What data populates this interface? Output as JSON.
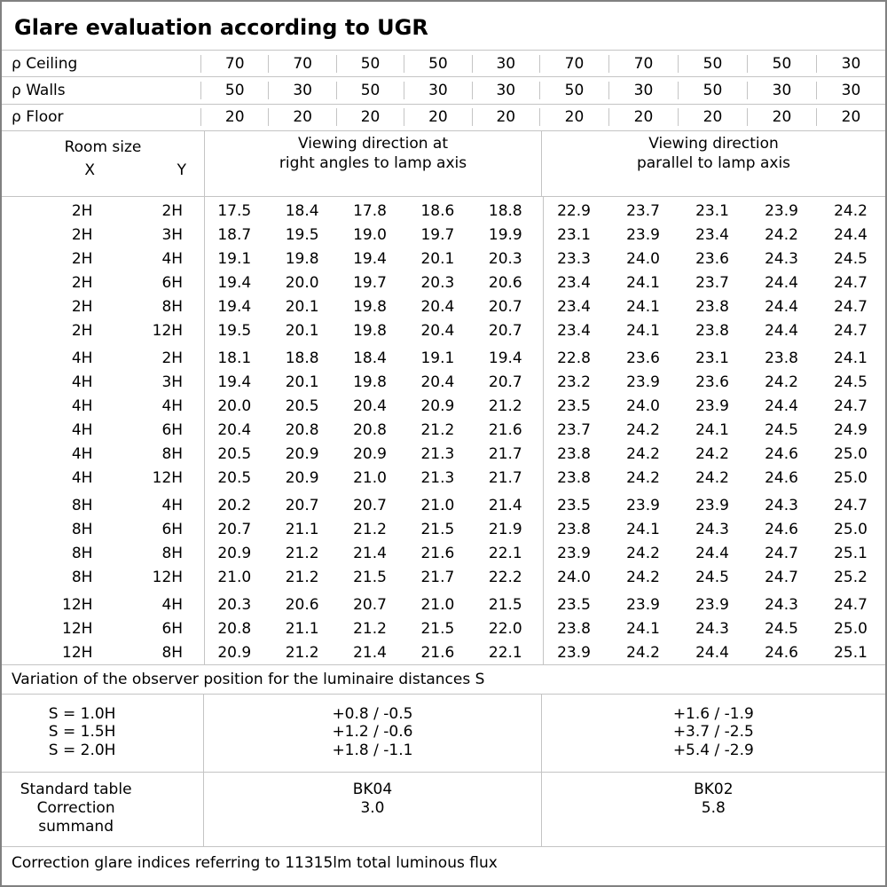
{
  "title": "Glare evaluation according to UGR",
  "colors": {
    "outer_border": "#808080",
    "grid_line": "#c4c4c4",
    "text": "#000000",
    "background": "#ffffff"
  },
  "reflectance_rows": [
    {
      "label": "ρ Ceiling",
      "values": [
        "70",
        "70",
        "50",
        "50",
        "30",
        "70",
        "70",
        "50",
        "50",
        "30"
      ]
    },
    {
      "label": "ρ Walls",
      "values": [
        "50",
        "30",
        "50",
        "30",
        "30",
        "50",
        "30",
        "50",
        "30",
        "30"
      ]
    },
    {
      "label": "ρ Floor",
      "values": [
        "20",
        "20",
        "20",
        "20",
        "20",
        "20",
        "20",
        "20",
        "20",
        "20"
      ]
    }
  ],
  "header": {
    "room_size": "Room size",
    "x": "X",
    "y": "Y",
    "group_right_angles": [
      "Viewing direction at",
      "right angles to lamp axis"
    ],
    "group_parallel": [
      "Viewing direction",
      "parallel to lamp axis"
    ]
  },
  "ugr_blocks": [
    {
      "rows": [
        {
          "x": "2H",
          "y": "2H",
          "values": [
            "17.5",
            "18.4",
            "17.8",
            "18.6",
            "18.8",
            "22.9",
            "23.7",
            "23.1",
            "23.9",
            "24.2"
          ]
        },
        {
          "x": "2H",
          "y": "3H",
          "values": [
            "18.7",
            "19.5",
            "19.0",
            "19.7",
            "19.9",
            "23.1",
            "23.9",
            "23.4",
            "24.2",
            "24.4"
          ]
        },
        {
          "x": "2H",
          "y": "4H",
          "values": [
            "19.1",
            "19.8",
            "19.4",
            "20.1",
            "20.3",
            "23.3",
            "24.0",
            "23.6",
            "24.3",
            "24.5"
          ]
        },
        {
          "x": "2H",
          "y": "6H",
          "values": [
            "19.4",
            "20.0",
            "19.7",
            "20.3",
            "20.6",
            "23.4",
            "24.1",
            "23.7",
            "24.4",
            "24.7"
          ]
        },
        {
          "x": "2H",
          "y": "8H",
          "values": [
            "19.4",
            "20.1",
            "19.8",
            "20.4",
            "20.7",
            "23.4",
            "24.1",
            "23.8",
            "24.4",
            "24.7"
          ]
        },
        {
          "x": "2H",
          "y": "12H",
          "values": [
            "19.5",
            "20.1",
            "19.8",
            "20.4",
            "20.7",
            "23.4",
            "24.1",
            "23.8",
            "24.4",
            "24.7"
          ]
        }
      ]
    },
    {
      "rows": [
        {
          "x": "4H",
          "y": "2H",
          "values": [
            "18.1",
            "18.8",
            "18.4",
            "19.1",
            "19.4",
            "22.8",
            "23.6",
            "23.1",
            "23.8",
            "24.1"
          ]
        },
        {
          "x": "4H",
          "y": "3H",
          "values": [
            "19.4",
            "20.1",
            "19.8",
            "20.4",
            "20.7",
            "23.2",
            "23.9",
            "23.6",
            "24.2",
            "24.5"
          ]
        },
        {
          "x": "4H",
          "y": "4H",
          "values": [
            "20.0",
            "20.5",
            "20.4",
            "20.9",
            "21.2",
            "23.5",
            "24.0",
            "23.9",
            "24.4",
            "24.7"
          ]
        },
        {
          "x": "4H",
          "y": "6H",
          "values": [
            "20.4",
            "20.8",
            "20.8",
            "21.2",
            "21.6",
            "23.7",
            "24.2",
            "24.1",
            "24.5",
            "24.9"
          ]
        },
        {
          "x": "4H",
          "y": "8H",
          "values": [
            "20.5",
            "20.9",
            "20.9",
            "21.3",
            "21.7",
            "23.8",
            "24.2",
            "24.2",
            "24.6",
            "25.0"
          ]
        },
        {
          "x": "4H",
          "y": "12H",
          "values": [
            "20.5",
            "20.9",
            "21.0",
            "21.3",
            "21.7",
            "23.8",
            "24.2",
            "24.2",
            "24.6",
            "25.0"
          ]
        }
      ]
    },
    {
      "rows": [
        {
          "x": "8H",
          "y": "4H",
          "values": [
            "20.2",
            "20.7",
            "20.7",
            "21.0",
            "21.4",
            "23.5",
            "23.9",
            "23.9",
            "24.3",
            "24.7"
          ]
        },
        {
          "x": "8H",
          "y": "6H",
          "values": [
            "20.7",
            "21.1",
            "21.2",
            "21.5",
            "21.9",
            "23.8",
            "24.1",
            "24.3",
            "24.6",
            "25.0"
          ]
        },
        {
          "x": "8H",
          "y": "8H",
          "values": [
            "20.9",
            "21.2",
            "21.4",
            "21.6",
            "22.1",
            "23.9",
            "24.2",
            "24.4",
            "24.7",
            "25.1"
          ]
        },
        {
          "x": "8H",
          "y": "12H",
          "values": [
            "21.0",
            "21.2",
            "21.5",
            "21.7",
            "22.2",
            "24.0",
            "24.2",
            "24.5",
            "24.7",
            "25.2"
          ]
        }
      ]
    },
    {
      "rows": [
        {
          "x": "12H",
          "y": "4H",
          "values": [
            "20.3",
            "20.6",
            "20.7",
            "21.0",
            "21.5",
            "23.5",
            "23.9",
            "23.9",
            "24.3",
            "24.7"
          ]
        },
        {
          "x": "12H",
          "y": "6H",
          "values": [
            "20.8",
            "21.1",
            "21.2",
            "21.5",
            "22.0",
            "23.8",
            "24.1",
            "24.3",
            "24.5",
            "25.0"
          ]
        },
        {
          "x": "12H",
          "y": "8H",
          "values": [
            "20.9",
            "21.2",
            "21.4",
            "21.6",
            "22.1",
            "23.9",
            "24.2",
            "24.4",
            "24.6",
            "25.1"
          ]
        }
      ]
    }
  ],
  "variation": {
    "note": "Variation of the observer position for the luminaire distances S",
    "rows": [
      {
        "s": "S = 1.0H",
        "right_angles": "+0.8 / -0.5",
        "parallel": "+1.6 / -1.9"
      },
      {
        "s": "S = 1.5H",
        "right_angles": "+1.2 / -0.6",
        "parallel": "+3.7 / -2.5"
      },
      {
        "s": "S = 2.0H",
        "right_angles": "+1.8 / -1.1",
        "parallel": "+5.4 / -2.9"
      }
    ]
  },
  "summary": {
    "labels": [
      "Standard table",
      "Correction summand"
    ],
    "right_angles": {
      "standard_table": "BK04",
      "correction_summand": "3.0"
    },
    "parallel": {
      "standard_table": "BK02",
      "correction_summand": "5.8"
    }
  },
  "footer_note": "Correction glare indices referring to 11315lm total luminous flux"
}
